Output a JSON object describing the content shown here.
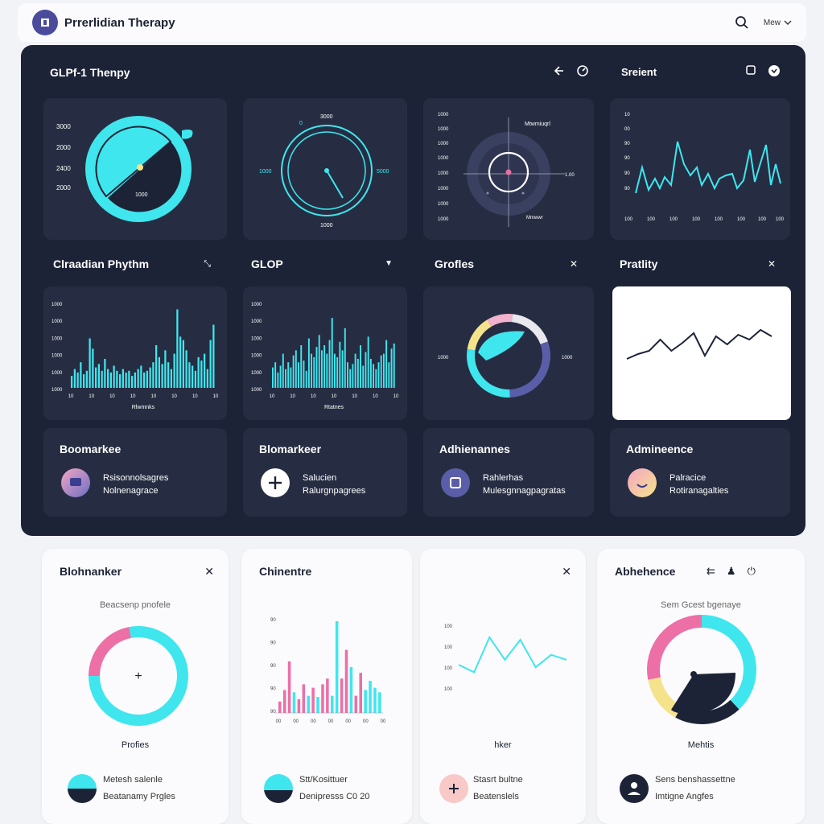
{
  "app": {
    "title": "Prrerlidian Therapy",
    "menu_label": "Mew"
  },
  "colors": {
    "accent": "#3fe6ee",
    "dark_bg": "#1d2337",
    "card_bg": "#262d42",
    "pink": "#ec6fa6",
    "yellow": "#f5e38c",
    "indigo": "#5a5ea8"
  },
  "dark_panel": {
    "title": "GLPf-1 Thenpy",
    "subtitle": "Sreient"
  },
  "gauges": [
    {
      "labels": [
        "3000",
        "2000",
        "2400",
        "2000"
      ],
      "center": "1000"
    },
    {
      "top": "0",
      "top2": "3000",
      "left": "1000",
      "right": "5000",
      "bottom": "1000"
    },
    {
      "labels": [
        "1000",
        "1000",
        "1000",
        "1000",
        "1000",
        "1000",
        "1000",
        "1000"
      ],
      "top": "Mtwmiuqrl",
      "right": "1.00",
      "bottom": "Mmwwr"
    },
    {
      "ylabels": [
        "10",
        "00",
        "90",
        "90",
        "90",
        "90"
      ],
      "xlabels": [
        "100",
        "100",
        "100",
        "100",
        "100",
        "100",
        "100",
        "100"
      ]
    }
  ],
  "chart_data": [
    {
      "type": "bar",
      "title": "Clraadian Phythm",
      "xlabel": "Rlwmnks",
      "yticks": [
        "1000",
        "1000",
        "1000",
        "1000",
        "1000",
        "1000"
      ],
      "xticks": [
        "10",
        "10",
        "10",
        "10",
        "10",
        "10",
        "10",
        "10"
      ],
      "values": [
        14,
        22,
        18,
        30,
        16,
        20,
        58,
        46,
        24,
        28,
        20,
        34,
        22,
        18,
        26,
        20,
        16,
        22,
        18,
        20,
        14,
        18,
        22,
        26,
        18,
        20,
        24,
        30,
        50,
        36,
        28,
        44,
        30,
        22,
        40,
        92,
        60,
        56,
        44,
        30,
        26,
        20,
        36,
        32,
        40,
        22,
        56,
        74
      ]
    },
    {
      "type": "bar",
      "title": "GLOP",
      "xlabel": "Rtatnes",
      "yticks": [
        "1000",
        "1000",
        "1000",
        "1000",
        "1000",
        "1000"
      ],
      "xticks": [
        "10",
        "10",
        "10",
        "10",
        "10",
        "10",
        "10"
      ],
      "values": [
        24,
        30,
        18,
        26,
        40,
        22,
        30,
        24,
        38,
        44,
        30,
        50,
        32,
        20,
        58,
        40,
        36,
        48,
        62,
        44,
        50,
        40,
        56,
        82,
        40,
        36,
        54,
        44,
        70,
        30,
        22,
        28,
        40,
        34,
        50,
        26,
        42,
        60,
        34,
        28,
        22,
        30,
        38,
        40,
        56,
        30,
        46,
        52
      ]
    },
    {
      "type": "pie",
      "title": "Grofles",
      "left": "1000",
      "right": "1000",
      "slices": [
        {
          "value": 14,
          "color": "#f5e38c"
        },
        {
          "value": 10,
          "color": "#f0b2cc"
        },
        {
          "value": 18,
          "color": "#e8e8ee"
        },
        {
          "value": 30,
          "color": "#5a5ea8"
        },
        {
          "value": 28,
          "color": "#3fe6ee"
        }
      ]
    },
    {
      "type": "line",
      "title": "Pratlity",
      "values": [
        20,
        26,
        30,
        44,
        30,
        40,
        52,
        24,
        48,
        38,
        50,
        44,
        56,
        48
      ]
    },
    {
      "type": "pie",
      "title": "Blohnanker",
      "subtitle": "Beacsenp pnofele",
      "caption": "Profies",
      "slices": [
        {
          "value": 22,
          "color": "#ec6fa6"
        },
        {
          "value": 78,
          "color": "#3fe6ee"
        }
      ]
    },
    {
      "type": "bar",
      "title": "Chinentre",
      "yticks": [
        "90",
        "90",
        "90",
        "90",
        "90"
      ],
      "xticks": [
        "00",
        "00",
        "00",
        "00",
        "00",
        "00",
        "00"
      ],
      "values": [
        {
          "v": 20,
          "c": "#ec6fa6"
        },
        {
          "v": 40,
          "c": "#ec6fa6"
        },
        {
          "v": 90,
          "c": "#ec6fa6"
        },
        {
          "v": 36,
          "c": "#3fe6ee"
        },
        {
          "v": 24,
          "c": "#ec6fa6"
        },
        {
          "v": 50,
          "c": "#ec6fa6"
        },
        {
          "v": 30,
          "c": "#3fe6ee"
        },
        {
          "v": 44,
          "c": "#ec6fa6"
        },
        {
          "v": 28,
          "c": "#3fe6ee"
        },
        {
          "v": 50,
          "c": "#ec6fa6"
        },
        {
          "v": 60,
          "c": "#ec6fa6"
        },
        {
          "v": 30,
          "c": "#3fe6ee"
        },
        {
          "v": 160,
          "c": "#3fe6ee"
        },
        {
          "v": 60,
          "c": "#ec6fa6"
        },
        {
          "v": 110,
          "c": "#ec6fa6"
        },
        {
          "v": 80,
          "c": "#3fe6ee"
        },
        {
          "v": 30,
          "c": "#ec6fa6"
        },
        {
          "v": 70,
          "c": "#ec6fa6"
        },
        {
          "v": 40,
          "c": "#3fe6ee"
        },
        {
          "v": 56,
          "c": "#3fe6ee"
        },
        {
          "v": 44,
          "c": "#3fe6ee"
        },
        {
          "v": 36,
          "c": "#3fe6ee"
        }
      ]
    },
    {
      "type": "line",
      "title": "",
      "caption": "hker",
      "yticks": [
        "100",
        "100",
        "100",
        "100"
      ],
      "values": [
        18,
        12,
        40,
        22,
        38,
        16,
        26,
        22
      ]
    },
    {
      "type": "pie",
      "title": "Abhehence",
      "subtitle": "Sem Gcest bgenaye",
      "caption": "Mehtis",
      "slices": [
        {
          "value": 38,
          "color": "#3fe6ee"
        },
        {
          "value": 20,
          "color": "#1d2337"
        },
        {
          "value": 14,
          "color": "#f5e38c"
        },
        {
          "value": 28,
          "color": "#ec6fa6"
        }
      ]
    }
  ],
  "biomarker_cards": [
    {
      "title": "Boomarkee",
      "line1": "Rsisonnolsagres",
      "line2": "Nolnenagrace"
    },
    {
      "title": "Blomarkeer",
      "line1": "Salucien",
      "line2": "Ralurgnpagrees"
    },
    {
      "title": "Adhienannes",
      "line1": "Rahlerhas",
      "line2": "Mulesgnnagpagratas"
    },
    {
      "title": "Admineence",
      "line1": "Palracice",
      "line2": "Rotiranagalties"
    }
  ],
  "light_cards": [
    {
      "line1": "Metesh salenle",
      "line2": "Beatanamy Prgles"
    },
    {
      "line1": "Stt/Kosittuer",
      "line2": "Denipresss C0 20"
    },
    {
      "line1": "Stasrt bultne",
      "line2": "Beatenslels"
    },
    {
      "line1": "Sens benshassettne",
      "line2": "Imtigne Angfes"
    }
  ]
}
